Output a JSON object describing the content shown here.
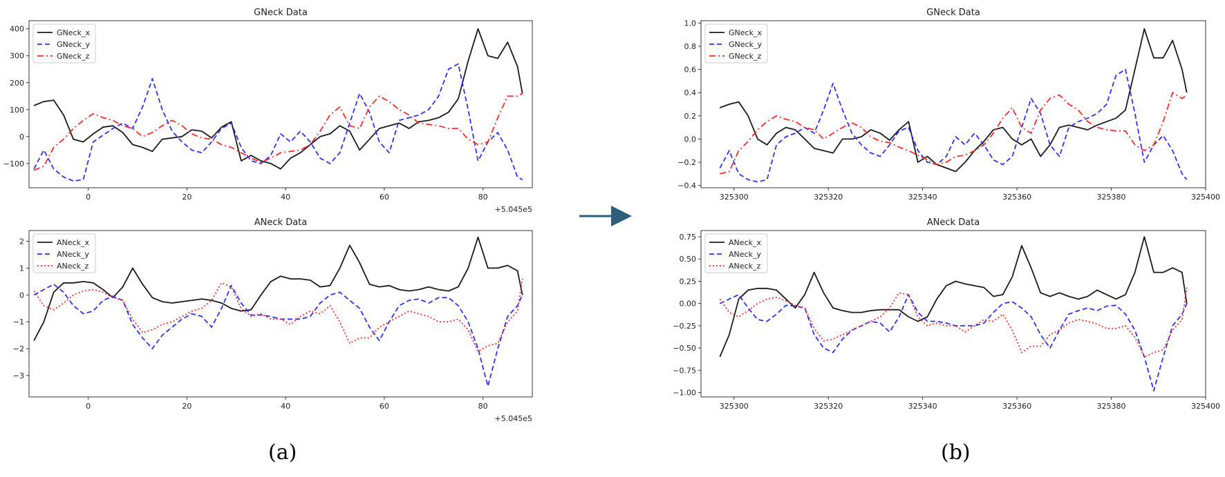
{
  "figure": {
    "panel_captions": [
      "(a)",
      "(b)"
    ],
    "arrow_color": "#2e5f7a"
  },
  "colors": {
    "x": "#1a1a1a",
    "y": "#2f2fff",
    "z": "#ff2a2a"
  },
  "chart_data": [
    {
      "type": "line",
      "title": "GNeck Data",
      "xlim": [
        -12,
        90
      ],
      "ylim": [
        -190,
        430
      ],
      "xticks": [
        0,
        20,
        40,
        60,
        80
      ],
      "xticklabels": [
        "0",
        "20",
        "40",
        "60",
        "80"
      ],
      "yticks": [
        -100,
        0,
        100,
        200,
        300,
        400
      ],
      "yticklabels": [
        "−100",
        "0",
        "100",
        "200",
        "300",
        "400"
      ],
      "offset_text": "+5.045e5",
      "legend_loc": "upper left",
      "x": [
        -11,
        -9,
        -7,
        -5,
        -3,
        -1,
        1,
        3,
        5,
        7,
        9,
        11,
        13,
        15,
        17,
        19,
        21,
        23,
        25,
        27,
        29,
        31,
        33,
        35,
        37,
        39,
        41,
        43,
        45,
        47,
        49,
        51,
        53,
        55,
        57,
        59,
        61,
        63,
        65,
        67,
        69,
        71,
        73,
        75,
        77,
        79,
        81,
        83,
        85,
        87,
        88
      ],
      "series": [
        {
          "name": "GNeck_x",
          "style": "solid",
          "values": [
            115,
            130,
            135,
            80,
            -10,
            -20,
            10,
            35,
            40,
            15,
            -30,
            -40,
            -55,
            -10,
            -5,
            0,
            25,
            20,
            -5,
            35,
            55,
            -90,
            -70,
            -90,
            -100,
            -120,
            -80,
            -60,
            -30,
            0,
            10,
            40,
            20,
            -50,
            -10,
            30,
            40,
            50,
            30,
            55,
            60,
            70,
            90,
            140,
            280,
            400,
            300,
            290,
            350,
            260,
            160
          ]
        },
        {
          "name": "GNeck_y",
          "style": "dashed",
          "values": [
            -120,
            -50,
            -120,
            -150,
            -165,
            -160,
            -20,
            5,
            30,
            50,
            30,
            110,
            215,
            100,
            20,
            -20,
            -50,
            -60,
            -20,
            30,
            50,
            -40,
            -90,
            -100,
            -70,
            10,
            -20,
            20,
            -20,
            -80,
            -100,
            -60,
            50,
            160,
            90,
            -20,
            -60,
            60,
            70,
            80,
            100,
            150,
            250,
            270,
            100,
            -90,
            -20,
            15,
            -50,
            -150,
            -160
          ]
        },
        {
          "name": "GNeck_z",
          "style": "dashdot",
          "values": [
            -125,
            -110,
            -40,
            -10,
            30,
            60,
            85,
            70,
            60,
            40,
            30,
            0,
            15,
            40,
            60,
            40,
            10,
            -5,
            -10,
            -30,
            -40,
            -60,
            -80,
            -95,
            -80,
            -60,
            -55,
            -50,
            -30,
            20,
            80,
            110,
            40,
            30,
            110,
            150,
            130,
            100,
            80,
            50,
            45,
            40,
            30,
            30,
            -10,
            -30,
            -20,
            70,
            150,
            150,
            160
          ]
        }
      ]
    },
    {
      "type": "line",
      "title": "ANeck Data",
      "xlim": [
        -12,
        90
      ],
      "ylim": [
        -3.8,
        2.4
      ],
      "xticks": [
        0,
        20,
        40,
        60,
        80
      ],
      "xticklabels": [
        "0",
        "20",
        "40",
        "60",
        "80"
      ],
      "yticks": [
        -3,
        -2,
        -1,
        0,
        1,
        2
      ],
      "yticklabels": [
        "−3",
        "−2",
        "−1",
        "0",
        "1",
        "2"
      ],
      "offset_text": "+5.045e5",
      "legend_loc": "upper left",
      "x": [
        -11,
        -9,
        -7,
        -5,
        -3,
        -1,
        1,
        3,
        5,
        7,
        9,
        11,
        13,
        15,
        17,
        19,
        21,
        23,
        25,
        27,
        29,
        31,
        33,
        35,
        37,
        39,
        41,
        43,
        45,
        47,
        49,
        51,
        53,
        55,
        57,
        59,
        61,
        63,
        65,
        67,
        69,
        71,
        73,
        75,
        77,
        79,
        81,
        83,
        85,
        87,
        88
      ],
      "series": [
        {
          "name": "ANeck_x",
          "style": "solid",
          "values": [
            -1.7,
            -1.0,
            0.1,
            0.45,
            0.45,
            0.5,
            0.45,
            0.2,
            -0.1,
            0.3,
            1.0,
            0.4,
            -0.1,
            -0.25,
            -0.3,
            -0.25,
            -0.2,
            -0.15,
            -0.2,
            -0.3,
            -0.5,
            -0.6,
            -0.55,
            0.0,
            0.5,
            0.7,
            0.6,
            0.6,
            0.55,
            0.3,
            0.35,
            1.0,
            1.85,
            1.2,
            0.4,
            0.3,
            0.35,
            0.2,
            0.15,
            0.2,
            0.3,
            0.2,
            0.15,
            0.3,
            1.0,
            2.15,
            1.0,
            1.0,
            1.1,
            0.9,
            0.0
          ]
        },
        {
          "name": "ANeck_y",
          "style": "dashed",
          "values": [
            0.0,
            0.2,
            0.4,
            0.1,
            -0.4,
            -0.7,
            -0.6,
            -0.2,
            -0.05,
            -0.2,
            -1.1,
            -1.6,
            -2.0,
            -1.5,
            -1.2,
            -0.9,
            -0.7,
            -0.8,
            -1.2,
            -0.5,
            0.35,
            -0.3,
            -0.75,
            -0.75,
            -0.8,
            -0.9,
            -0.9,
            -0.9,
            -0.8,
            -0.3,
            0.0,
            0.1,
            -0.2,
            -0.5,
            -1.2,
            -1.7,
            -1.0,
            -0.4,
            -0.2,
            -0.15,
            -0.3,
            -0.1,
            -0.1,
            -0.4,
            -1.0,
            -2.0,
            -3.4,
            -2.0,
            -0.8,
            -0.4,
            0.0
          ]
        },
        {
          "name": "ANeck_z",
          "style": "dotted",
          "values": [
            0.15,
            -0.4,
            -0.55,
            -0.3,
            0.0,
            0.15,
            0.2,
            0.1,
            -0.1,
            -0.2,
            -0.9,
            -1.4,
            -1.3,
            -1.1,
            -1.0,
            -0.8,
            -0.6,
            -0.5,
            -0.2,
            0.45,
            0.3,
            -0.5,
            -0.8,
            -0.7,
            -0.9,
            -0.9,
            -1.1,
            -0.8,
            -0.6,
            -0.7,
            -0.4,
            -1.0,
            -1.8,
            -1.6,
            -1.6,
            -1.2,
            -1.0,
            -0.8,
            -0.6,
            -0.7,
            -0.8,
            -1.0,
            -1.0,
            -0.9,
            -1.3,
            -2.1,
            -1.9,
            -1.8,
            -1.0,
            -0.6,
            0.6
          ]
        }
      ]
    },
    {
      "type": "line",
      "title": "GNeck Data",
      "xlim": [
        325293,
        325400
      ],
      "ylim": [
        -0.42,
        1.02
      ],
      "xticks": [
        325300,
        325320,
        325340,
        325360,
        325380,
        325400
      ],
      "xticklabels": [
        "325300",
        "325320",
        "325340",
        "325360",
        "325380",
        "325400"
      ],
      "yticks": [
        -0.4,
        -0.2,
        0.0,
        0.2,
        0.4,
        0.6,
        0.8,
        1.0
      ],
      "yticklabels": [
        "−0.4",
        "−0.2",
        "0.0",
        "0.2",
        "0.4",
        "0.6",
        "0.8",
        "1.0"
      ],
      "legend_loc": "upper left",
      "x": [
        325297,
        325299,
        325301,
        325303,
        325305,
        325307,
        325309,
        325311,
        325313,
        325315,
        325317,
        325319,
        325321,
        325323,
        325325,
        325327,
        325329,
        325331,
        325333,
        325335,
        325337,
        325339,
        325341,
        325343,
        325345,
        325347,
        325349,
        325351,
        325353,
        325355,
        325357,
        325359,
        325361,
        325363,
        325365,
        325367,
        325369,
        325371,
        325373,
        325375,
        325377,
        325379,
        325381,
        325383,
        325385,
        325387,
        325389,
        325391,
        325393,
        325395,
        325396
      ],
      "series": [
        {
          "name": "GNeck_x",
          "style": "solid",
          "values": [
            0.27,
            0.3,
            0.32,
            0.2,
            0.0,
            -0.05,
            0.05,
            0.1,
            0.08,
            0.0,
            -0.08,
            -0.1,
            -0.12,
            0.0,
            0.0,
            0.02,
            0.08,
            0.05,
            -0.01,
            0.08,
            0.15,
            -0.2,
            -0.15,
            -0.22,
            -0.25,
            -0.28,
            -0.2,
            -0.1,
            -0.02,
            0.08,
            0.1,
            0.0,
            -0.05,
            0.0,
            -0.15,
            -0.05,
            0.1,
            0.12,
            0.1,
            0.08,
            0.12,
            0.15,
            0.18,
            0.25,
            0.6,
            0.95,
            0.7,
            0.7,
            0.85,
            0.6,
            0.4
          ]
        },
        {
          "name": "GNeck_y",
          "style": "dashed",
          "values": [
            -0.25,
            -0.1,
            -0.3,
            -0.35,
            -0.37,
            -0.35,
            -0.05,
            0.02,
            0.05,
            0.1,
            0.05,
            0.25,
            0.48,
            0.25,
            0.05,
            -0.05,
            -0.12,
            -0.15,
            -0.05,
            0.07,
            0.1,
            -0.1,
            -0.2,
            -0.22,
            -0.15,
            0.02,
            -0.05,
            0.05,
            -0.05,
            -0.18,
            -0.22,
            -0.15,
            0.1,
            0.35,
            0.22,
            -0.05,
            -0.15,
            0.1,
            0.15,
            0.18,
            0.22,
            0.3,
            0.55,
            0.6,
            0.22,
            -0.2,
            -0.05,
            0.03,
            -0.1,
            -0.3,
            -0.35
          ]
        },
        {
          "name": "GNeck_z",
          "style": "dashdot",
          "values": [
            -0.3,
            -0.28,
            -0.1,
            -0.02,
            0.08,
            0.15,
            0.2,
            0.17,
            0.15,
            0.1,
            0.08,
            0.0,
            0.05,
            0.1,
            0.14,
            0.1,
            0.02,
            -0.02,
            -0.03,
            -0.07,
            -0.1,
            -0.14,
            -0.18,
            -0.22,
            -0.2,
            -0.15,
            -0.14,
            -0.1,
            -0.05,
            0.05,
            0.18,
            0.27,
            0.1,
            0.05,
            0.25,
            0.35,
            0.38,
            0.3,
            0.25,
            0.15,
            0.1,
            0.08,
            0.07,
            0.07,
            -0.05,
            -0.1,
            -0.05,
            0.15,
            0.4,
            0.35,
            0.38
          ]
        }
      ]
    },
    {
      "type": "line",
      "title": "ANeck Data",
      "xlim": [
        325293,
        325400
      ],
      "ylim": [
        -1.05,
        0.82
      ],
      "xticks": [
        325300,
        325320,
        325340,
        325360,
        325380,
        325400
      ],
      "xticklabels": [
        "325300",
        "325320",
        "325340",
        "325360",
        "325380",
        "325400"
      ],
      "yticks": [
        -1.0,
        -0.75,
        -0.5,
        -0.25,
        0.0,
        0.25,
        0.5,
        0.75
      ],
      "yticklabels": [
        "−1.00",
        "−0.75",
        "−0.50",
        "−0.25",
        "0.00",
        "0.25",
        "0.50",
        "0.75"
      ],
      "legend_loc": "upper left",
      "x": [
        325297,
        325299,
        325301,
        325303,
        325305,
        325307,
        325309,
        325311,
        325313,
        325315,
        325317,
        325319,
        325321,
        325323,
        325325,
        325327,
        325329,
        325331,
        325333,
        325335,
        325337,
        325339,
        325341,
        325343,
        325345,
        325347,
        325349,
        325351,
        325353,
        325355,
        325357,
        325359,
        325361,
        325363,
        325365,
        325367,
        325369,
        325371,
        325373,
        325375,
        325377,
        325379,
        325381,
        325383,
        325385,
        325387,
        325389,
        325391,
        325393,
        325395,
        325396
      ],
      "series": [
        {
          "name": "ANeck_x",
          "style": "solid",
          "values": [
            -0.6,
            -0.35,
            0.05,
            0.15,
            0.17,
            0.17,
            0.15,
            0.05,
            -0.05,
            0.1,
            0.35,
            0.12,
            -0.05,
            -0.08,
            -0.1,
            -0.1,
            -0.08,
            -0.07,
            -0.07,
            -0.07,
            -0.15,
            -0.2,
            -0.15,
            0.05,
            0.2,
            0.25,
            0.22,
            0.2,
            0.18,
            0.08,
            0.1,
            0.3,
            0.65,
            0.4,
            0.12,
            0.08,
            0.12,
            0.08,
            0.05,
            0.08,
            0.15,
            0.1,
            0.05,
            0.1,
            0.35,
            0.75,
            0.35,
            0.35,
            0.4,
            0.35,
            0.0
          ]
        },
        {
          "name": "ANeck_y",
          "style": "dashed",
          "values": [
            0.0,
            0.05,
            0.1,
            -0.05,
            -0.18,
            -0.2,
            -0.12,
            -0.02,
            -0.03,
            -0.05,
            -0.35,
            -0.5,
            -0.55,
            -0.4,
            -0.3,
            -0.25,
            -0.2,
            -0.22,
            -0.32,
            -0.15,
            0.1,
            -0.1,
            -0.2,
            -0.2,
            -0.22,
            -0.25,
            -0.25,
            -0.25,
            -0.22,
            -0.1,
            0.0,
            0.02,
            -0.05,
            -0.15,
            -0.35,
            -0.5,
            -0.3,
            -0.12,
            -0.08,
            -0.05,
            -0.08,
            -0.03,
            -0.02,
            -0.12,
            -0.3,
            -0.6,
            -0.98,
            -0.6,
            -0.25,
            -0.12,
            0.0
          ]
        },
        {
          "name": "ANeck_z",
          "style": "dotted",
          "values": [
            0.05,
            -0.1,
            -0.15,
            -0.08,
            0.0,
            0.05,
            0.07,
            0.03,
            -0.02,
            -0.05,
            -0.28,
            -0.42,
            -0.4,
            -0.35,
            -0.3,
            -0.25,
            -0.2,
            -0.15,
            -0.05,
            0.12,
            0.1,
            -0.15,
            -0.25,
            -0.22,
            -0.25,
            -0.25,
            -0.32,
            -0.25,
            -0.18,
            -0.2,
            -0.12,
            -0.3,
            -0.55,
            -0.48,
            -0.48,
            -0.35,
            -0.3,
            -0.22,
            -0.18,
            -0.2,
            -0.23,
            -0.28,
            -0.28,
            -0.25,
            -0.38,
            -0.6,
            -0.55,
            -0.52,
            -0.3,
            -0.18,
            0.18
          ]
        }
      ]
    }
  ]
}
